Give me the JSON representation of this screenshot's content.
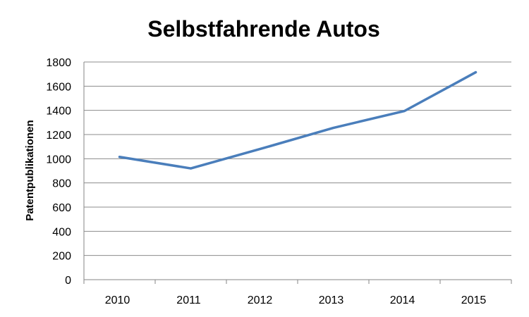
{
  "chart_data": {
    "type": "line",
    "title": "Selbstfahrende Autos",
    "xlabel": "",
    "ylabel": "Patentpublikationen",
    "categories": [
      "2010",
      "2011",
      "2012",
      "2013",
      "2014",
      "2015"
    ],
    "series": [
      {
        "values": [
          1015,
          920,
          1085,
          1255,
          1395,
          1715
        ],
        "color": "#4a7ebb"
      }
    ],
    "ylim": [
      0,
      1800
    ],
    "yticks": [
      0,
      200,
      400,
      600,
      800,
      1000,
      1200,
      1400,
      1600,
      1800
    ],
    "grid": true,
    "legend": "none"
  }
}
